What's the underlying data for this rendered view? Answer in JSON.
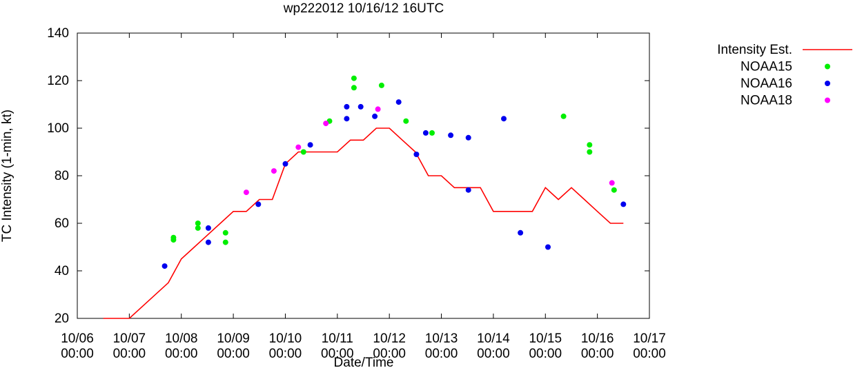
{
  "chart_data": {
    "type": "line",
    "title": "wp222012 10/16/12 16UTC",
    "xlabel": "Date/Time",
    "ylabel": "TC Intensity (1-min, kt)",
    "ylim": [
      20,
      140
    ],
    "yticks": [
      20,
      40,
      60,
      80,
      100,
      120,
      140
    ],
    "xlim": [
      0,
      11
    ],
    "xunit": "days since 10/06 00:00",
    "xticks": [
      {
        "v": 0,
        "line1": "10/06",
        "line2": "00:00"
      },
      {
        "v": 1,
        "line1": "10/07",
        "line2": "00:00"
      },
      {
        "v": 2,
        "line1": "10/08",
        "line2": "00:00"
      },
      {
        "v": 3,
        "line1": "10/09",
        "line2": "00:00"
      },
      {
        "v": 4,
        "line1": "10/10",
        "line2": "00:00"
      },
      {
        "v": 5,
        "line1": "10/11",
        "line2": "00:00"
      },
      {
        "v": 6,
        "line1": "10/12",
        "line2": "00:00"
      },
      {
        "v": 7,
        "line1": "10/13",
        "line2": "00:00"
      },
      {
        "v": 8,
        "line1": "10/14",
        "line2": "00:00"
      },
      {
        "v": 9,
        "line1": "10/15",
        "line2": "00:00"
      },
      {
        "v": 10,
        "line1": "10/16",
        "line2": "00:00"
      },
      {
        "v": 11,
        "line1": "10/17",
        "line2": "00:00"
      }
    ],
    "legend_position": "outside-right",
    "series": [
      {
        "name": "Intensity Est.",
        "kind": "line",
        "color": "#ff0000",
        "points": [
          [
            0.5,
            20
          ],
          [
            1.0,
            20
          ],
          [
            1.75,
            35
          ],
          [
            2.0,
            45
          ],
          [
            2.25,
            50
          ],
          [
            2.5,
            55
          ],
          [
            2.75,
            60
          ],
          [
            3.0,
            65
          ],
          [
            3.25,
            65
          ],
          [
            3.5,
            70
          ],
          [
            3.75,
            70
          ],
          [
            4.0,
            85
          ],
          [
            4.25,
            90
          ],
          [
            4.5,
            90
          ],
          [
            4.75,
            90
          ],
          [
            5.0,
            90
          ],
          [
            5.25,
            95
          ],
          [
            5.5,
            95
          ],
          [
            5.75,
            100
          ],
          [
            6.0,
            100
          ],
          [
            6.25,
            95
          ],
          [
            6.5,
            90
          ],
          [
            6.75,
            80
          ],
          [
            7.0,
            80
          ],
          [
            7.25,
            75
          ],
          [
            7.5,
            75
          ],
          [
            7.75,
            75
          ],
          [
            8.0,
            65
          ],
          [
            8.25,
            65
          ],
          [
            8.5,
            65
          ],
          [
            8.75,
            65
          ],
          [
            9.0,
            75
          ],
          [
            9.25,
            70
          ],
          [
            9.5,
            75
          ],
          [
            9.75,
            70
          ],
          [
            10.0,
            65
          ],
          [
            10.25,
            60
          ],
          [
            10.5,
            60
          ]
        ]
      },
      {
        "name": "NOAA15",
        "kind": "scatter",
        "color": "#00ee00",
        "points": [
          [
            1.85,
            53
          ],
          [
            1.85,
            54
          ],
          [
            2.32,
            58
          ],
          [
            2.32,
            60
          ],
          [
            2.85,
            52
          ],
          [
            2.85,
            56
          ],
          [
            4.35,
            90
          ],
          [
            4.85,
            103
          ],
          [
            5.32,
            117
          ],
          [
            5.32,
            121
          ],
          [
            5.85,
            118
          ],
          [
            6.32,
            103
          ],
          [
            6.82,
            98
          ],
          [
            9.35,
            105
          ],
          [
            9.85,
            90
          ],
          [
            9.85,
            93
          ],
          [
            10.32,
            74
          ]
        ]
      },
      {
        "name": "NOAA16",
        "kind": "scatter",
        "color": "#0000ee",
        "points": [
          [
            1.68,
            42
          ],
          [
            2.52,
            52
          ],
          [
            2.52,
            58
          ],
          [
            3.48,
            68
          ],
          [
            4.0,
            85
          ],
          [
            4.48,
            93
          ],
          [
            5.18,
            104
          ],
          [
            5.18,
            109
          ],
          [
            5.45,
            109
          ],
          [
            5.72,
            105
          ],
          [
            6.18,
            111
          ],
          [
            6.52,
            89
          ],
          [
            6.7,
            98
          ],
          [
            7.18,
            97
          ],
          [
            7.52,
            96
          ],
          [
            7.52,
            74
          ],
          [
            8.2,
            104
          ],
          [
            8.52,
            56
          ],
          [
            9.05,
            50
          ],
          [
            10.5,
            68
          ]
        ]
      },
      {
        "name": "NOAA18",
        "kind": "scatter",
        "color": "#ff00ff",
        "points": [
          [
            3.25,
            73
          ],
          [
            3.78,
            82
          ],
          [
            4.25,
            92
          ],
          [
            4.78,
            102
          ],
          [
            5.78,
            108
          ],
          [
            10.28,
            77
          ]
        ]
      }
    ]
  }
}
